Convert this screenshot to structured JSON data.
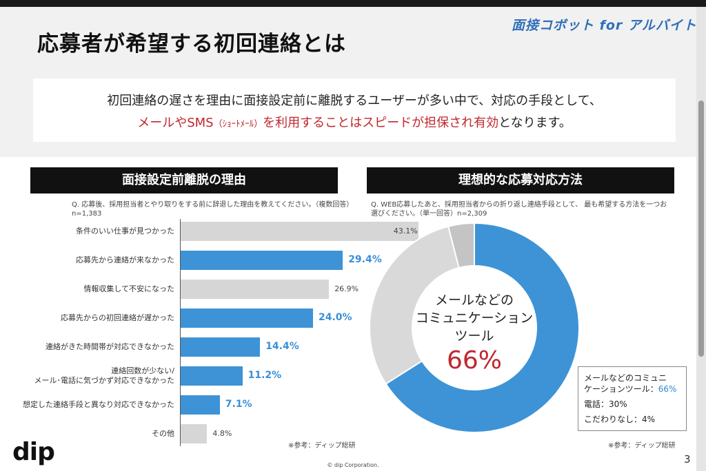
{
  "slide": {
    "title": "応募者が希望する初回連絡とは",
    "logo": "面接コボット for アルバイト",
    "lead_line1": "初回連絡の遅さを理由に面接設定前に離脱するユーザーが多い中で、対応の手段として、",
    "lead_line2_red_a": "メールやSMS",
    "lead_line2_red_small": "（ｼｮｰﾄﾒｰﾙ）",
    "lead_line2_red_b": "を利用することはスピードが担保され有効",
    "lead_line2_tail": "となります。",
    "page_number": "3",
    "brand": "dip",
    "copyright": "© dip Corporation."
  },
  "left_section": {
    "heading": "面接設定前離脱の理由",
    "question": "Q. 応募後、採用担当者とやり取りをする前に辞退した理由を教えてください。（複数回答）n=1,383",
    "note": "※参考：ディップ総研"
  },
  "right_section": {
    "heading": "理想的な応募対応方法",
    "question_line1": "Q. WEB応募したあと、採用担当者からの折り返し連絡手段として、 最も希望する方法を一つお",
    "question_line2": "選びください。（単一回答）n=2,309",
    "center_line1": "メールなどの",
    "center_line2": "コミュニケーション",
    "center_line3": "ツール",
    "center_pct": "66%",
    "legend_line1": "メールなどのコミュニ",
    "legend_line2": "ケーションツール：",
    "legend_line2_pct": "66%",
    "legend_phone": "電話：30%",
    "legend_none": "こだわりなし：4%",
    "note": "※参考：ディップ総研"
  },
  "chart_data": [
    {
      "type": "bar",
      "orientation": "horizontal",
      "title": "面接設定前離脱の理由",
      "categories": [
        "条件のいい仕事が見つかった",
        "応募先から連絡が来なかった",
        "情報収集して不安になった",
        "応募先からの初回連絡が遅かった",
        "連絡がきた時間帯が対応できなかった",
        "連絡回数が少ない/メール･電話に気づかず対応できなかった",
        "想定した連絡手段と異なり対応できなかった",
        "その他"
      ],
      "category_lines": [
        [
          "条件のいい仕事が見つかった"
        ],
        [
          "応募先から連絡が来なかった"
        ],
        [
          "情報収集して不安になった"
        ],
        [
          "応募先からの初回連絡が遅かった"
        ],
        [
          "連絡がきた時間帯が対応できなかった"
        ],
        [
          "連絡回数が少ない/",
          "メール･電話に気づかず対応できなかった"
        ],
        [
          "想定した連絡手段と異なり対応できなかった"
        ],
        [
          "その他"
        ]
      ],
      "values": [
        43.1,
        29.4,
        26.9,
        24.0,
        14.4,
        11.2,
        7.1,
        4.8
      ],
      "value_labels": [
        "43.1%",
        "29.4%",
        "26.9%",
        "24.0%",
        "14.4%",
        "11.2%",
        "7.1%",
        "4.8%"
      ],
      "highlighted": [
        false,
        true,
        false,
        true,
        true,
        true,
        true,
        false
      ],
      "colors": {
        "highlight": "#3d93d6",
        "normal": "#d6d6d6"
      },
      "xlim": [
        0,
        50
      ]
    },
    {
      "type": "pie",
      "style": "donut",
      "title": "理想的な応募対応方法",
      "categories": [
        "メールなどのコミュニケーションツール",
        "電話",
        "こだわりなし"
      ],
      "values": [
        66,
        30,
        4
      ],
      "colors": [
        "#3d93d6",
        "#d9d9d9",
        "#c4c4c4"
      ]
    }
  ]
}
